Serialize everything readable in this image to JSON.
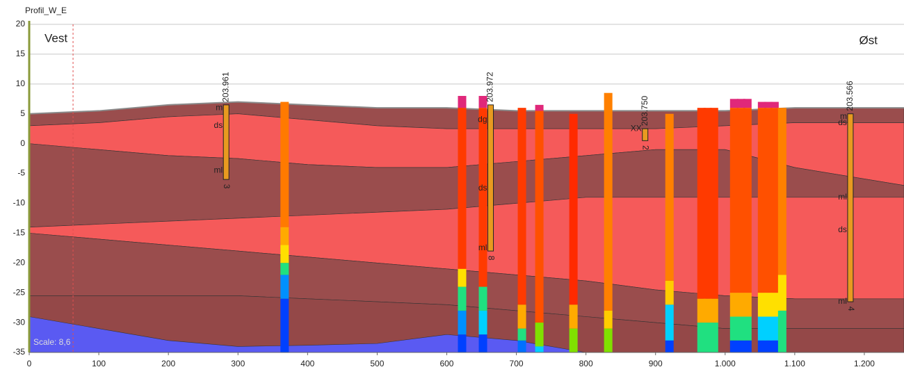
{
  "chart_data": {
    "type": "profile",
    "title": "Profil_W_E",
    "left_label": "Vest",
    "right_label": "Øst",
    "scale_label": "Scale: 8,6",
    "marker_x": 63,
    "xlim": [
      0,
      1257
    ],
    "ylim": [
      -35,
      20
    ],
    "xticks": [
      0,
      100,
      200,
      300,
      400,
      500,
      600,
      700,
      800,
      900,
      {
        "value": 1000,
        "label": "1.000"
      },
      {
        "value": 1100,
        "label": "1.100"
      },
      {
        "value": 1200,
        "label": "1.200"
      }
    ],
    "yticks": [
      -35,
      -30,
      -25,
      -20,
      -15,
      -10,
      -5,
      0,
      5,
      10,
      15,
      20
    ],
    "grid": true,
    "layer_x": [
      0,
      100,
      200,
      300,
      400,
      500,
      600,
      700,
      800,
      900,
      1000,
      1100,
      1257
    ],
    "layers": [
      {
        "color": "#9a4d4d",
        "top": [
          5,
          5.5,
          6.5,
          7,
          6.5,
          6,
          6,
          5.5,
          5.5,
          5.5,
          5.5,
          6,
          6
        ],
        "bottom": [
          3,
          3.5,
          4.5,
          5,
          4,
          3,
          2.5,
          2.5,
          2.5,
          2.5,
          3,
          3.5,
          3.5
        ]
      },
      {
        "color": "#f55a5a",
        "top": [
          3,
          3.5,
          4.5,
          5,
          4,
          3,
          2.5,
          2.5,
          2.5,
          2.5,
          3,
          3.5,
          3.5
        ],
        "bottom": [
          0,
          -1,
          -2,
          -2.5,
          -3.5,
          -4,
          -4,
          -3,
          -2,
          -1,
          -1,
          -4,
          -7
        ]
      },
      {
        "color": "#9a4d4d",
        "top": [
          0,
          -1,
          -2,
          -2.5,
          -3.5,
          -4,
          -4,
          -3,
          -2,
          -1,
          -1,
          -4,
          -7
        ],
        "bottom": [
          -14,
          -13.5,
          -13,
          -12.5,
          -12,
          -11.5,
          -11,
          -10,
          -9,
          -9,
          -9,
          -9,
          -9
        ]
      },
      {
        "color": "#f55a5a",
        "top": [
          -14,
          -13.5,
          -13,
          -12.5,
          -12,
          -11.5,
          -11,
          -10,
          -9,
          -9,
          -9,
          -9,
          -9
        ],
        "bottom": [
          -15,
          -16,
          -17,
          -18,
          -19,
          -20,
          -21,
          -22,
          -23,
          -24.5,
          -25.5,
          -26,
          -26
        ]
      },
      {
        "color": "#9a4d4d",
        "top": [
          -15,
          -16,
          -17,
          -18,
          -19,
          -20,
          -21,
          -22,
          -23,
          -24.5,
          -25.5,
          -26,
          -26
        ],
        "bottom": [
          -25.5,
          -25.5,
          -25.5,
          -25.5,
          -26,
          -26.5,
          -27,
          -28,
          -29,
          -30,
          -31,
          -31,
          -31
        ]
      },
      {
        "color": "#944848",
        "top": [
          -25.5,
          -25.5,
          -25.5,
          -25.5,
          -26,
          -26.5,
          -27,
          -28,
          -29,
          -30,
          -31,
          -31,
          -31
        ],
        "bottom": [
          -35,
          -35,
          -35,
          -35,
          -35,
          -35,
          -35,
          -35,
          -35,
          -35,
          -35,
          -35,
          -35
        ]
      },
      {
        "color": "#5a5af2",
        "top": [
          -29,
          -31,
          -33,
          -34,
          -33.8,
          -33.5,
          -32,
          -33,
          -35,
          -35,
          -35,
          -35,
          -35
        ],
        "bottom": [
          -35,
          -35,
          -35,
          -35,
          -35,
          -35,
          -35,
          -35,
          -35,
          -35,
          -35,
          -35,
          -35
        ]
      }
    ],
    "terrain_color": "#8a8a8a",
    "boreholes": [
      {
        "x": 367,
        "levels": [
          7,
          -14,
          -17,
          -20,
          -22,
          -26,
          -35
        ],
        "colors": [
          "#ff7a00",
          "#ffaa00",
          "#ffe000",
          "#20e080",
          "#0090ff",
          "#0040ff"
        ]
      },
      {
        "x": 622,
        "levels": [
          8,
          6,
          -21,
          -24,
          -28,
          -32,
          -35
        ],
        "colors": [
          "#e0287a",
          "#ff3a00",
          "#ffe000",
          "#20e080",
          "#0090ff",
          "#0040ff"
        ]
      },
      {
        "x": 652,
        "levels": [
          8,
          6,
          -24,
          -28,
          -32,
          -35
        ],
        "colors": [
          "#e0287a",
          "#ff3a00",
          "#20e080",
          "#00d0ff",
          "#0040ff"
        ]
      },
      {
        "x": 708,
        "levels": [
          6,
          -27,
          -31,
          -33,
          -35
        ],
        "colors": [
          "#ff3a00",
          "#ffaa00",
          "#20e080",
          "#0070ff"
        ]
      },
      {
        "x": 733,
        "levels": [
          6.5,
          5.5,
          -30,
          -34,
          -35
        ],
        "colors": [
          "#e0287a",
          "#ff5000",
          "#80e000",
          "#00d0ff"
        ]
      },
      {
        "x": 782,
        "levels": [
          5,
          -27,
          -31,
          -35
        ],
        "colors": [
          "#ff2a00",
          "#ffaa00",
          "#80e000"
        ]
      },
      {
        "x": 832,
        "levels": [
          8.5,
          -28,
          -31,
          -35
        ],
        "colors": [
          "#ff8000",
          "#ffcc00",
          "#80e000"
        ]
      },
      {
        "x": 920,
        "levels": [
          5,
          -23,
          -27,
          -33,
          -35
        ],
        "colors": [
          "#ff8000",
          "#ffcc00",
          "#00d0ff",
          "#0040ff"
        ]
      },
      {
        "x": 966,
        "levels": [
          6,
          -26,
          -30,
          -35
        ],
        "colors": [
          "#ff3a00",
          "#ffaa00",
          "#20e080"
        ]
      },
      {
        "x": 975,
        "levels": [
          6,
          -26,
          -30,
          -35
        ],
        "colors": [
          "#ff3a00",
          "#ffaa00",
          "#20e080"
        ]
      },
      {
        "x": 984,
        "levels": [
          6,
          -26,
          -30,
          -35
        ],
        "colors": [
          "#ff3a00",
          "#ffaa00",
          "#20e080"
        ]
      },
      {
        "x": 1013,
        "levels": [
          7.5,
          6,
          -25,
          -29,
          -33,
          -35
        ],
        "colors": [
          "#e0287a",
          "#ff5000",
          "#ffaa00",
          "#20e080",
          "#0040ff"
        ]
      },
      {
        "x": 1023,
        "levels": [
          7.5,
          6,
          -25,
          -29,
          -33,
          -35
        ],
        "colors": [
          "#e0287a",
          "#ff5000",
          "#ffaa00",
          "#20e080",
          "#0040ff"
        ]
      },
      {
        "x": 1032,
        "levels": [
          7.5,
          6,
          -25,
          -29,
          -33,
          -35
        ],
        "colors": [
          "#e0287a",
          "#ff5000",
          "#ffaa00",
          "#20e080",
          "#0040ff"
        ]
      },
      {
        "x": 1053,
        "levels": [
          7,
          6,
          -25,
          -29,
          -33,
          -35
        ],
        "colors": [
          "#e0287a",
          "#ff5000",
          "#ffe000",
          "#00d0ff",
          "#0040ff"
        ]
      },
      {
        "x": 1062,
        "levels": [
          7,
          6,
          -25,
          -29,
          -33,
          -35
        ],
        "colors": [
          "#e0287a",
          "#ff5000",
          "#ffe000",
          "#00d0ff",
          "#0040ff"
        ]
      },
      {
        "x": 1071,
        "levels": [
          7,
          6,
          -25,
          -29,
          -33,
          -35
        ],
        "colors": [
          "#e0287a",
          "#ff5000",
          "#ffe000",
          "#00d0ff",
          "#0040ff"
        ]
      },
      {
        "x": 1082,
        "levels": [
          6,
          -22,
          -28,
          -35
        ],
        "colors": [
          "#ff8000",
          "#ffe000",
          "#20e080"
        ]
      }
    ],
    "probes": [
      {
        "id": "203.961",
        "x": 283,
        "top": 6.5,
        "bottom": -6,
        "labels": [
          "m",
          "ds",
          "ml"
        ],
        "label_y": [
          6,
          3,
          -4.5
        ],
        "end": "3"
      },
      {
        "id": "203.972",
        "x": 663,
        "top": 6.5,
        "bottom": -18,
        "labels": [
          "dg",
          "ds",
          "ml"
        ],
        "label_y": [
          4,
          -7.5,
          -17.5
        ],
        "end": "8"
      },
      {
        "id": "203.750",
        "x": 885,
        "top": 2.5,
        "bottom": 0.5,
        "labels": [
          "XX"
        ],
        "label_y": [
          2.5
        ],
        "end": "2"
      },
      {
        "id": "203.566",
        "x": 1180,
        "top": 5,
        "bottom": -26.5,
        "labels": [
          "m",
          "ds",
          "ml",
          "ds",
          "ml"
        ],
        "label_y": [
          4.5,
          3.5,
          -9,
          -14.5,
          -26.5
        ],
        "end": "4"
      }
    ],
    "probe_color": "#e89a20"
  }
}
